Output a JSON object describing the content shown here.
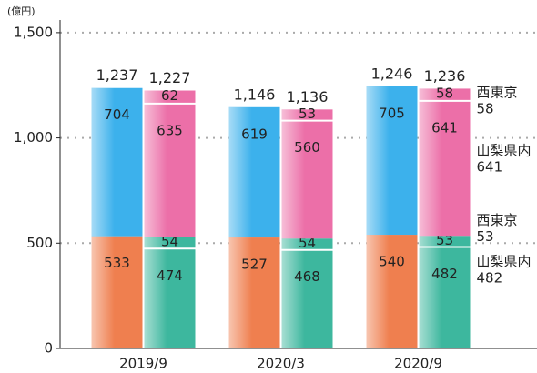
{
  "chart_data": {
    "type": "bar",
    "unit": "(億円)",
    "categories": [
      "2019/9",
      "2020/3",
      "2020/9"
    ],
    "ylim": [
      0,
      1560
    ],
    "yticks": [
      0,
      500,
      {
        "value": 1000,
        "label": "1,000"
      },
      {
        "value": 1500,
        "label": "1,500"
      }
    ],
    "grid": true,
    "stacks": [
      {
        "totals": [
          1237,
          1146,
          1246
        ],
        "total_labels": [
          "1,237",
          "1,146",
          "1,246"
        ],
        "series": [
          {
            "color": "#ef7f4f",
            "values": [
              533,
              527,
              540
            ]
          },
          {
            "color": "#3cb1ec",
            "values": [
              704,
              619,
              705
            ]
          }
        ]
      },
      {
        "totals": [
          1227,
          1136,
          1236
        ],
        "total_labels": [
          "1,227",
          "1,136",
          "1,236"
        ],
        "series": [
          {
            "name": "山梨県内",
            "color": "#3db79e",
            "values": [
              474,
              468,
              482
            ]
          },
          {
            "name": "西東京",
            "color": "#3db79e",
            "values": [
              54,
              54,
              53
            ]
          },
          {
            "name": "山梨県内",
            "color": "#ec6fa8",
            "values": [
              635,
              560,
              641
            ]
          },
          {
            "name": "西東京",
            "color": "#ec6fa8",
            "values": [
              62,
              53,
              58
            ]
          }
        ]
      }
    ]
  }
}
